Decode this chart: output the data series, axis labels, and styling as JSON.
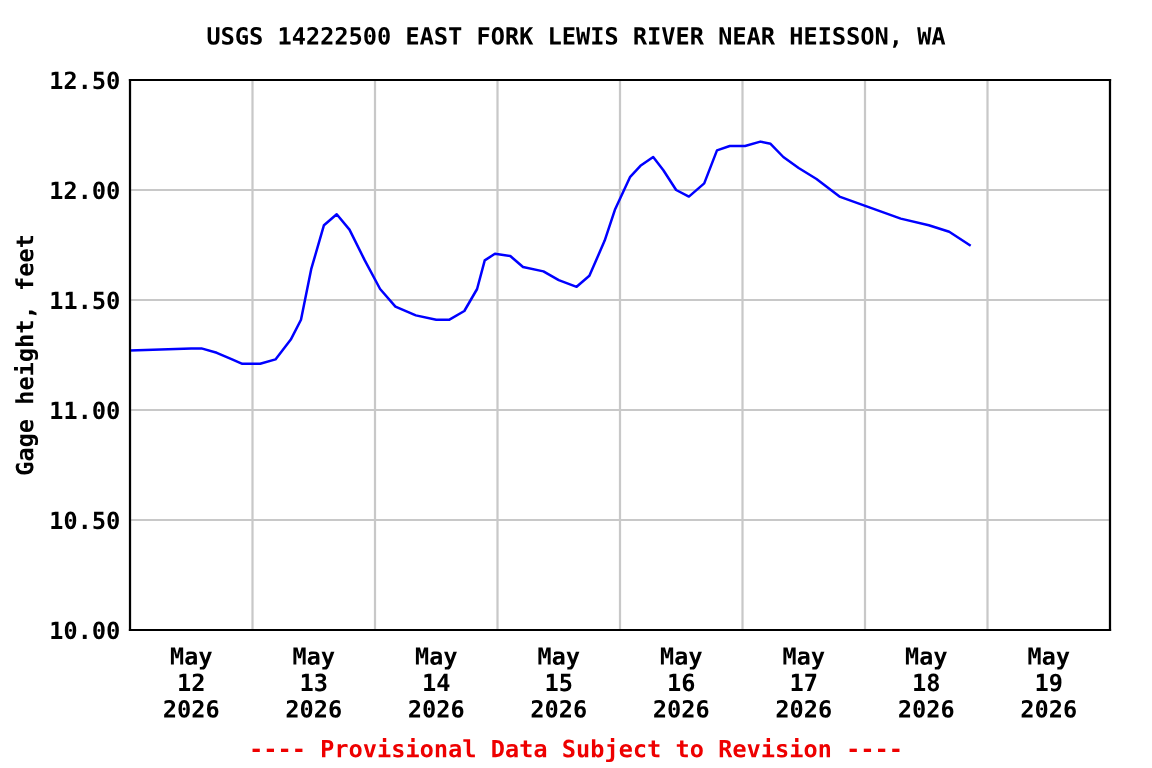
{
  "chart_data": {
    "type": "line",
    "title": "USGS 14222500 EAST FORK LEWIS RIVER NEAR HEISSON, WA",
    "ylabel": "Gage height, feet",
    "annotations": [
      "---- Provisional Data Subject to Revision ----"
    ],
    "x": [
      "2026-05-12T00:00",
      "2026-05-12T12:00",
      "2026-05-12T14:00",
      "2026-05-12T17:00",
      "2026-05-12T20:00",
      "2026-05-12T22:00",
      "2026-05-13T01:30",
      "2026-05-13T04:30",
      "2026-05-13T07:30",
      "2026-05-13T09:30",
      "2026-05-13T11:30",
      "2026-05-13T14:00",
      "2026-05-13T16:30",
      "2026-05-13T19:00",
      "2026-05-13T22:00",
      "2026-05-14T01:00",
      "2026-05-14T04:00",
      "2026-05-14T08:00",
      "2026-05-14T12:00",
      "2026-05-14T14:30",
      "2026-05-14T17:30",
      "2026-05-14T20:00",
      "2026-05-14T21:30",
      "2026-05-14T23:30",
      "2026-05-15T02:30",
      "2026-05-15T05:00",
      "2026-05-15T09:00",
      "2026-05-15T12:00",
      "2026-05-15T15:30",
      "2026-05-15T18:00",
      "2026-05-15T21:00",
      "2026-05-15T23:00",
      "2026-05-16T02:00",
      "2026-05-16T04:00",
      "2026-05-16T06:30",
      "2026-05-16T08:30",
      "2026-05-16T11:00",
      "2026-05-16T13:30",
      "2026-05-16T16:30",
      "2026-05-16T19:00",
      "2026-05-16T21:30",
      "2026-05-17T00:30",
      "2026-05-17T03:30",
      "2026-05-17T05:30",
      "2026-05-17T08:00",
      "2026-05-17T11:00",
      "2026-05-17T14:30",
      "2026-05-17T19:00",
      "2026-05-18T01:00",
      "2026-05-18T07:00",
      "2026-05-18T12:30",
      "2026-05-18T16:30",
      "2026-05-18T20:30"
    ],
    "series": [
      {
        "color": "#0000ff",
        "values": [
          11.27,
          11.28,
          11.28,
          11.26,
          11.23,
          11.21,
          11.21,
          11.23,
          11.32,
          11.41,
          11.64,
          11.84,
          11.89,
          11.82,
          11.68,
          11.55,
          11.47,
          11.43,
          11.41,
          11.41,
          11.45,
          11.55,
          11.68,
          11.71,
          11.7,
          11.65,
          11.63,
          11.59,
          11.56,
          11.61,
          11.77,
          11.91,
          12.06,
          12.11,
          12.15,
          12.09,
          12.0,
          11.97,
          12.03,
          12.18,
          12.2,
          12.2,
          12.22,
          12.21,
          12.15,
          12.1,
          12.05,
          11.97,
          11.92,
          11.87,
          11.84,
          11.81,
          11.75
        ]
      }
    ],
    "xlim": [
      "2026-05-12T00:00",
      "2026-05-20T00:00"
    ],
    "xticks": [
      {
        "value": "2026-05-12T00:00",
        "label": null
      },
      {
        "value": "2026-05-12T12:00",
        "label": "May\n12\n2026"
      },
      {
        "value": "2026-05-13T00:00",
        "label": null
      },
      {
        "value": "2026-05-13T12:00",
        "label": "May\n13\n2026"
      },
      {
        "value": "2026-05-14T00:00",
        "label": null
      },
      {
        "value": "2026-05-14T12:00",
        "label": "May\n14\n2026"
      },
      {
        "value": "2026-05-15T00:00",
        "label": null
      },
      {
        "value": "2026-05-15T12:00",
        "label": "May\n15\n2026"
      },
      {
        "value": "2026-05-16T00:00",
        "label": null
      },
      {
        "value": "2026-05-16T12:00",
        "label": "May\n16\n2026"
      },
      {
        "value": "2026-05-17T00:00",
        "label": null
      },
      {
        "value": "2026-05-17T12:00",
        "label": "May\n17\n2026"
      },
      {
        "value": "2026-05-18T00:00",
        "label": null
      },
      {
        "value": "2026-05-18T12:00",
        "label": "May\n18\n2026"
      },
      {
        "value": "2026-05-19T00:00",
        "label": null
      },
      {
        "value": "2026-05-19T12:00",
        "label": "May\n19\n2026"
      },
      {
        "value": "2026-05-20T00:00",
        "label": null
      }
    ],
    "ylim": [
      10.0,
      12.5
    ],
    "yticks": [
      {
        "value": 10.0,
        "label": "10.00"
      },
      {
        "value": 10.5,
        "label": "10.50"
      },
      {
        "value": 11.0,
        "label": "11.00"
      },
      {
        "value": 11.5,
        "label": "11.50"
      },
      {
        "value": 12.0,
        "label": "12.00"
      },
      {
        "value": 12.5,
        "label": "12.50"
      }
    ],
    "grid": true,
    "line_style": "solid",
    "marker": "none"
  }
}
